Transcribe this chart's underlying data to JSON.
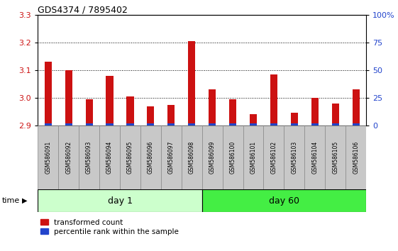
{
  "title": "GDS4374 / 7895402",
  "samples": [
    "GSM586091",
    "GSM586092",
    "GSM586093",
    "GSM586094",
    "GSM586095",
    "GSM586096",
    "GSM586097",
    "GSM586098",
    "GSM586099",
    "GSM586100",
    "GSM586101",
    "GSM586102",
    "GSM586103",
    "GSM586104",
    "GSM586105",
    "GSM586106"
  ],
  "red_values": [
    3.13,
    3.1,
    2.995,
    3.08,
    3.005,
    2.97,
    2.975,
    3.205,
    3.03,
    2.995,
    2.94,
    3.085,
    2.945,
    3.0,
    2.98,
    3.03
  ],
  "blue_heights": [
    0.007,
    0.007,
    0.007,
    0.007,
    0.007,
    0.007,
    0.007,
    0.007,
    0.007,
    0.007,
    0.007,
    0.007,
    0.007,
    0.007,
    0.007,
    0.007
  ],
  "baseline": 2.9,
  "ylim": [
    2.9,
    3.3
  ],
  "yticks_left": [
    2.9,
    3.0,
    3.1,
    3.2,
    3.3
  ],
  "yticks_right": [
    0,
    25,
    50,
    75,
    100
  ],
  "ytick_right_labels": [
    "0",
    "25",
    "50",
    "75",
    "100%"
  ],
  "day1_count": 8,
  "day60_count": 8,
  "day1_label": "day 1",
  "day60_label": "day 60",
  "time_label": "time",
  "legend_red": "transformed count",
  "legend_blue": "percentile rank within the sample",
  "bar_width": 0.35,
  "red_color": "#cc1111",
  "blue_color": "#2244cc",
  "left_axis_color": "#cc1111",
  "right_axis_color": "#2244cc",
  "plot_bg": "#ffffff",
  "label_bg": "#c8c8c8",
  "label_border": "#888888",
  "day1_bg": "#ccffcc",
  "day60_bg": "#44ee44",
  "fig_bg": "#ffffff"
}
